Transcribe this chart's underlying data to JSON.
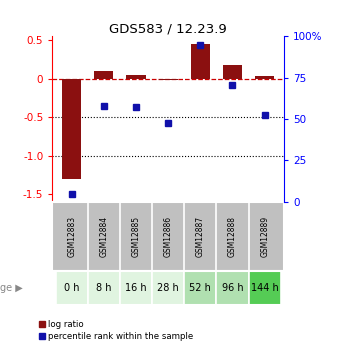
{
  "title": "GDS583 / 12.23.9",
  "samples": [
    "GSM12883",
    "GSM12884",
    "GSM12885",
    "GSM12886",
    "GSM12887",
    "GSM12888",
    "GSM12889"
  ],
  "age_labels": [
    "0 h",
    "8 h",
    "16 h",
    "28 h",
    "52 h",
    "96 h",
    "144 h"
  ],
  "age_colors": [
    "#e0f4e0",
    "#e0f4e0",
    "#e0f4e0",
    "#e0f4e0",
    "#b0e0b0",
    "#b0e0b0",
    "#55cc55"
  ],
  "log_ratio": [
    -1.3,
    0.1,
    0.05,
    -0.02,
    0.45,
    0.17,
    0.04
  ],
  "percentile_rank_scaled": [
    -1.5,
    -0.35,
    -0.37,
    -0.58,
    0.44,
    -0.08,
    -0.47
  ],
  "bar_color": "#8b1010",
  "dot_color": "#1010aa",
  "ylim_left": [
    -1.6,
    0.55
  ],
  "ylim_right": [
    0,
    100
  ],
  "yticks_left": [
    -1.5,
    -1.0,
    -0.5,
    0.0,
    0.5
  ],
  "yticks_right": [
    0,
    25,
    50,
    75,
    100
  ],
  "ytick_labels_right": [
    "0",
    "25",
    "50",
    "75",
    "100%"
  ],
  "hline_y": 0.0,
  "dotted_lines": [
    -0.5,
    -1.0
  ],
  "background_color": "#ffffff",
  "grey_bg": "#c0c0c0",
  "bar_width": 0.6,
  "x_positions": [
    1,
    2,
    3,
    4,
    5,
    6,
    7
  ]
}
